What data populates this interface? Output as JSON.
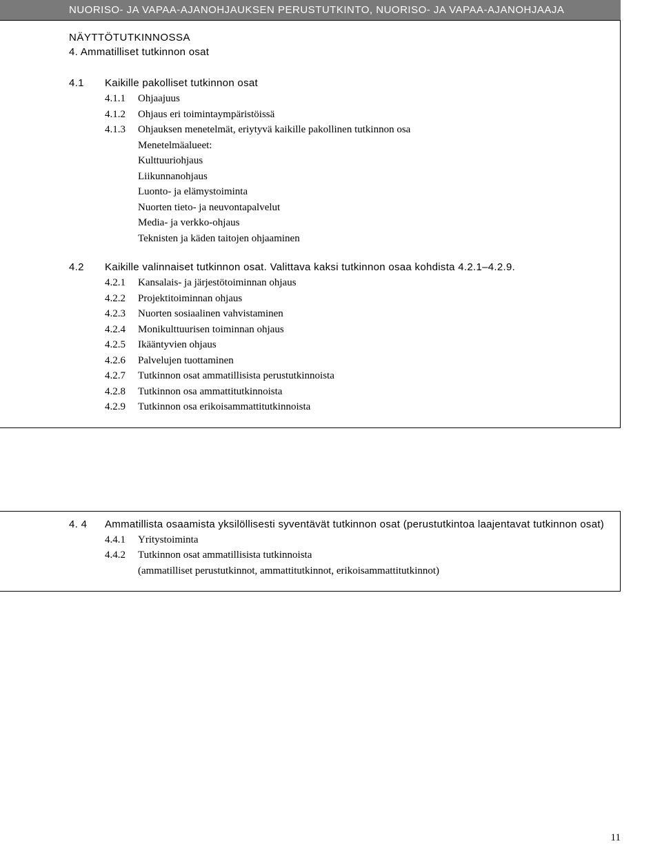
{
  "header": {
    "title": "NUORISO- JA VAPAA-AJANOHJAUKSEN PERUSTUTKINTO, NUORISO- JA VAPAA-AJANOHJAAJA",
    "subtitle": "NÄYTTÖTUTKINNOSSA"
  },
  "box1": {
    "section_title": "4.  Ammatilliset tutkinnon osat",
    "groups": [
      {
        "num": "4.1",
        "title": "Kaikille pakolliset tutkinnon osat",
        "items": [
          {
            "num": "4.1.1",
            "text": "Ohjaajuus"
          },
          {
            "num": "4.1.2",
            "text": "Ohjaus eri toimintaympäristöissä"
          },
          {
            "num": "4.1.3",
            "text": "Ohjauksen menetelmät, eriytyvä kaikille pakollinen tutkinnon osa"
          }
        ],
        "sub_heading": "Menetelmäalueet:",
        "subs": [
          "Kulttuuriohjaus",
          "Liikunnanohjaus",
          "Luonto- ja elämystoiminta",
          "Nuorten tieto- ja neuvontapalvelut",
          "Media- ja verkko-ohjaus",
          "Teknisten ja käden taitojen ohjaaminen"
        ]
      },
      {
        "num": "4.2",
        "title": "Kaikille valinnaiset tutkinnon osat. Valittava kaksi tutkinnon osaa kohdista 4.2.1–4.2.9.",
        "items": [
          {
            "num": "4.2.1",
            "text": "Kansalais- ja järjestötoiminnan ohjaus"
          },
          {
            "num": "4.2.2",
            "text": "Projektitoiminnan ohjaus"
          },
          {
            "num": "4.2.3",
            "text": "Nuorten sosiaalinen vahvistaminen"
          },
          {
            "num": "4.2.4",
            "text": "Monikulttuurisen toiminnan ohjaus"
          },
          {
            "num": "4.2.5",
            "text": "Ikääntyvien ohjaus"
          },
          {
            "num": "4.2.6",
            "text": "Palvelujen tuottaminen"
          },
          {
            "num": "4.2.7",
            "text": "Tutkinnon osat ammatillisista perustutkinnoista"
          },
          {
            "num": "4.2.8",
            "text": "Tutkinnon osa ammattitutkinnoista"
          },
          {
            "num": "4.2.9",
            "text": "Tutkinnon osa erikoisammattitutkinnoista"
          }
        ]
      }
    ]
  },
  "box2": {
    "groups": [
      {
        "num": "4. 4",
        "title": "Ammatillista osaamista yksilöllisesti syventävät tutkinnon osat (perustutkintoa laajentavat tutkinnon osat)",
        "items": [
          {
            "num": "4.4.1",
            "text": "Yritystoiminta"
          },
          {
            "num": "4.4.2",
            "text": "Tutkinnon osat ammatillisista tutkinnoista"
          }
        ],
        "paren": "(ammatilliset perustutkinnot, ammattitutkinnot, erikoisammattitutkinnot)"
      }
    ]
  },
  "page_number": "11"
}
